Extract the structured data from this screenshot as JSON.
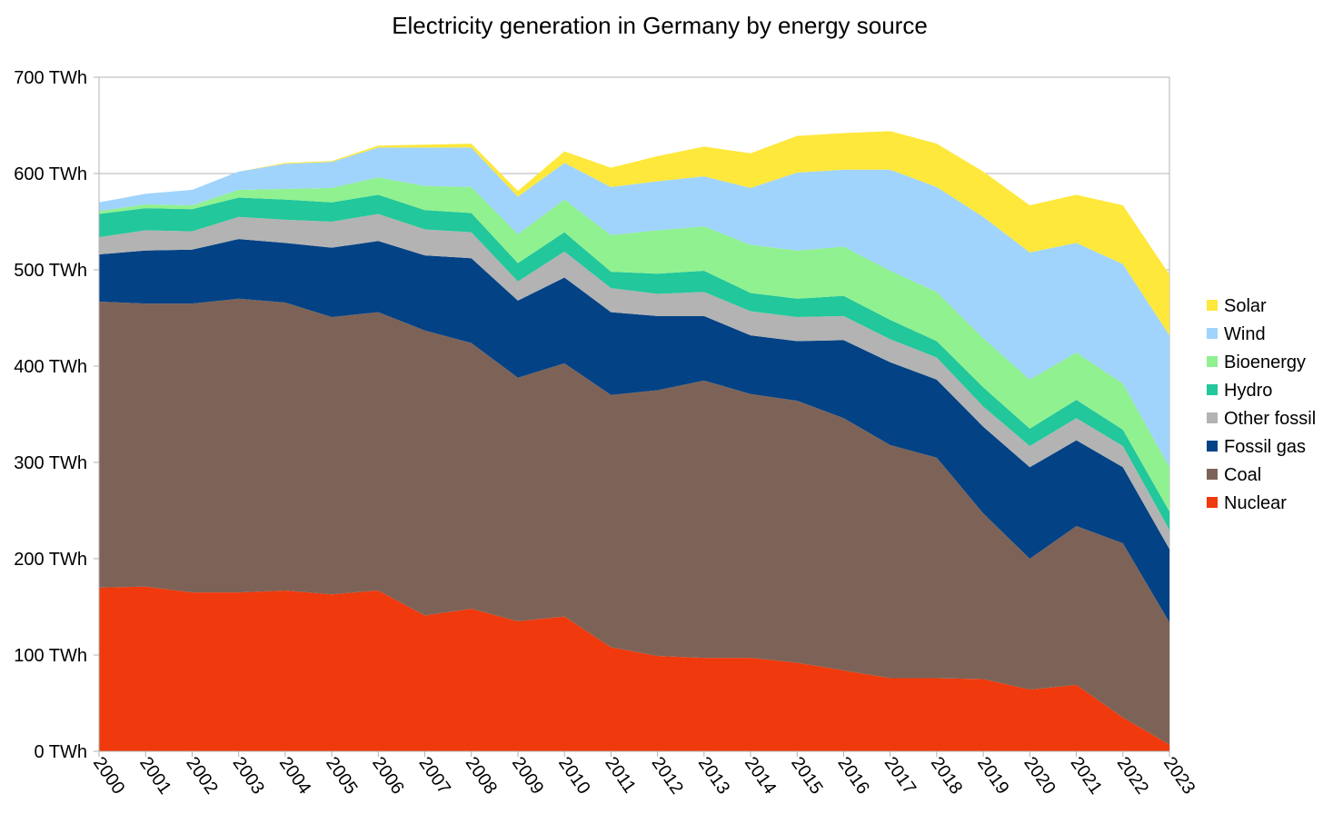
{
  "chart_data": {
    "type": "area",
    "stacked": true,
    "title": "Electricity generation in Germany by energy source",
    "xlabel": "",
    "ylabel": "",
    "y_unit": "TWh",
    "ylim": [
      0,
      700
    ],
    "yticks": [
      0,
      100,
      200,
      300,
      400,
      500,
      600,
      700
    ],
    "ytick_labels": [
      "0 TWh",
      "100 TWh",
      "200 TWh",
      "300 TWh",
      "400 TWh",
      "500 TWh",
      "600 TWh",
      "700 TWh"
    ],
    "grid": "horizontal",
    "legend_position": "right",
    "x": [
      "2000",
      "2001",
      "2002",
      "2003",
      "2004",
      "2005",
      "2006",
      "2007",
      "2008",
      "2009",
      "2010",
      "2011",
      "2012",
      "2013",
      "2014",
      "2015",
      "2016",
      "2017",
      "2018",
      "2019",
      "2020",
      "2021",
      "2022",
      "2023"
    ],
    "series": [
      {
        "name": "Nuclear",
        "color": "#f0390c",
        "values": [
          170,
          171,
          165,
          165,
          167,
          163,
          167,
          141,
          148,
          135,
          140,
          108,
          99,
          97,
          97,
          92,
          84,
          76,
          76,
          75,
          64,
          69,
          35,
          7
        ]
      },
      {
        "name": "Coal",
        "color": "#7d6357",
        "values": [
          297,
          294,
          300,
          305,
          299,
          288,
          289,
          296,
          276,
          253,
          263,
          262,
          276,
          288,
          274,
          272,
          262,
          242,
          229,
          172,
          136,
          165,
          181,
          127
        ]
      },
      {
        "name": "Fossil gas",
        "color": "#024285",
        "values": [
          49,
          55,
          56,
          62,
          62,
          72,
          74,
          78,
          88,
          80,
          89,
          86,
          77,
          67,
          61,
          62,
          81,
          86,
          81,
          90,
          95,
          89,
          79,
          76
        ]
      },
      {
        "name": "Other fossil",
        "color": "#b3b3b3",
        "values": [
          18,
          21,
          19,
          23,
          24,
          27,
          28,
          27,
          27,
          20,
          27,
          25,
          23,
          25,
          25,
          25,
          25,
          24,
          23,
          21,
          22,
          23,
          22,
          20
        ]
      },
      {
        "name": "Hydro",
        "color": "#22c79b",
        "values": [
          24,
          23,
          23,
          20,
          21,
          20,
          20,
          20,
          20,
          19,
          20,
          17,
          21,
          22,
          19,
          19,
          21,
          20,
          17,
          20,
          18,
          19,
          17,
          19
        ]
      },
      {
        "name": "Bioenergy",
        "color": "#90f190",
        "values": [
          3,
          4,
          4,
          8,
          11,
          15,
          18,
          25,
          27,
          30,
          34,
          38,
          45,
          46,
          50,
          50,
          51,
          51,
          51,
          51,
          51,
          49,
          48,
          46
        ]
      },
      {
        "name": "Wind",
        "color": "#a0d4fc",
        "values": [
          9,
          11,
          16,
          19,
          26,
          27,
          31,
          40,
          41,
          39,
          38,
          50,
          51,
          52,
          59,
          81,
          80,
          105,
          109,
          126,
          132,
          114,
          124,
          137
        ]
      },
      {
        "name": "Solar",
        "color": "#fee83b",
        "values": [
          0,
          0,
          0,
          0,
          1,
          1,
          2,
          3,
          4,
          6,
          12,
          20,
          26,
          31,
          36,
          38,
          38,
          40,
          45,
          47,
          49,
          50,
          61,
          63
        ]
      }
    ]
  }
}
